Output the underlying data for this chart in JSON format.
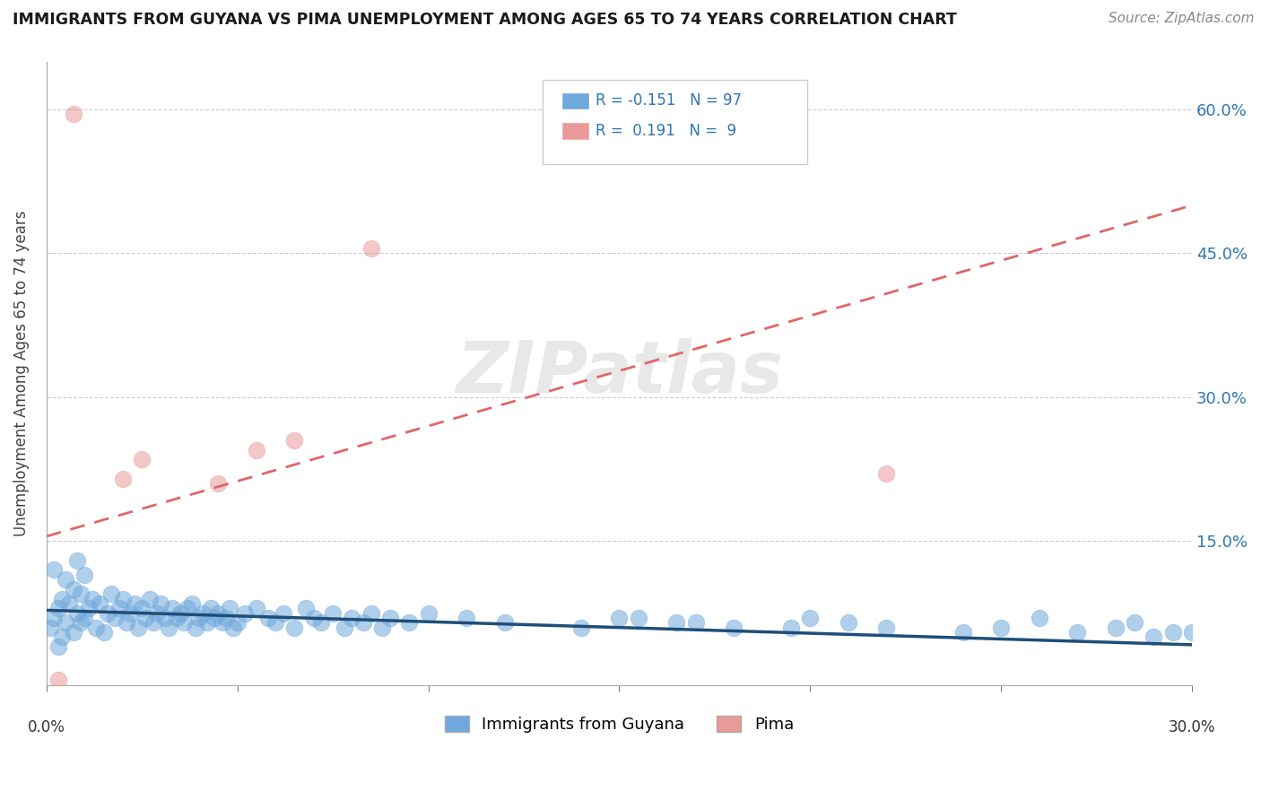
{
  "title": "IMMIGRANTS FROM GUYANA VS PIMA UNEMPLOYMENT AMONG AGES 65 TO 74 YEARS CORRELATION CHART",
  "source": "Source: ZipAtlas.com",
  "ylabel": "Unemployment Among Ages 65 to 74 years",
  "xlim": [
    0.0,
    0.3
  ],
  "ylim": [
    0.0,
    0.65
  ],
  "color_blue": "#6fa8dc",
  "color_pink": "#ea9999",
  "color_blue_line": "#1f4e79",
  "color_pink_line": "#e06666",
  "blue_scatter_x": [
    0.001,
    0.002,
    0.002,
    0.003,
    0.003,
    0.004,
    0.004,
    0.005,
    0.005,
    0.006,
    0.007,
    0.007,
    0.008,
    0.008,
    0.009,
    0.009,
    0.01,
    0.01,
    0.011,
    0.012,
    0.013,
    0.014,
    0.015,
    0.016,
    0.017,
    0.018,
    0.019,
    0.02,
    0.021,
    0.022,
    0.023,
    0.024,
    0.025,
    0.026,
    0.027,
    0.028,
    0.029,
    0.03,
    0.031,
    0.032,
    0.033,
    0.034,
    0.035,
    0.036,
    0.037,
    0.038,
    0.039,
    0.04,
    0.041,
    0.042,
    0.043,
    0.044,
    0.045,
    0.046,
    0.047,
    0.048,
    0.049,
    0.05,
    0.052,
    0.055,
    0.058,
    0.06,
    0.062,
    0.065,
    0.068,
    0.07,
    0.072,
    0.075,
    0.078,
    0.08,
    0.083,
    0.085,
    0.088,
    0.09,
    0.095,
    0.1,
    0.11,
    0.12,
    0.14,
    0.15,
    0.17,
    0.18,
    0.2,
    0.21,
    0.22,
    0.24,
    0.25,
    0.26,
    0.27,
    0.28,
    0.285,
    0.29,
    0.295,
    0.3,
    0.195,
    0.155,
    0.165
  ],
  "blue_scatter_y": [
    0.06,
    0.07,
    0.12,
    0.08,
    0.04,
    0.09,
    0.05,
    0.065,
    0.11,
    0.085,
    0.055,
    0.1,
    0.075,
    0.13,
    0.065,
    0.095,
    0.07,
    0.115,
    0.08,
    0.09,
    0.06,
    0.085,
    0.055,
    0.075,
    0.095,
    0.07,
    0.08,
    0.09,
    0.065,
    0.075,
    0.085,
    0.06,
    0.08,
    0.07,
    0.09,
    0.065,
    0.075,
    0.085,
    0.07,
    0.06,
    0.08,
    0.07,
    0.075,
    0.065,
    0.08,
    0.085,
    0.06,
    0.07,
    0.075,
    0.065,
    0.08,
    0.07,
    0.075,
    0.065,
    0.07,
    0.08,
    0.06,
    0.065,
    0.075,
    0.08,
    0.07,
    0.065,
    0.075,
    0.06,
    0.08,
    0.07,
    0.065,
    0.075,
    0.06,
    0.07,
    0.065,
    0.075,
    0.06,
    0.07,
    0.065,
    0.075,
    0.07,
    0.065,
    0.06,
    0.07,
    0.065,
    0.06,
    0.07,
    0.065,
    0.06,
    0.055,
    0.06,
    0.07,
    0.055,
    0.06,
    0.065,
    0.05,
    0.055,
    0.055,
    0.06,
    0.07,
    0.065
  ],
  "pink_scatter_x": [
    0.003,
    0.007,
    0.02,
    0.025,
    0.045,
    0.055,
    0.065,
    0.085,
    0.22
  ],
  "pink_scatter_y": [
    0.005,
    0.595,
    0.215,
    0.235,
    0.21,
    0.245,
    0.255,
    0.455,
    0.22
  ],
  "blue_line_x": [
    0.0,
    0.3
  ],
  "blue_line_y": [
    0.078,
    0.042
  ],
  "pink_line_x": [
    0.0,
    0.3
  ],
  "pink_line_y": [
    0.155,
    0.5
  ]
}
